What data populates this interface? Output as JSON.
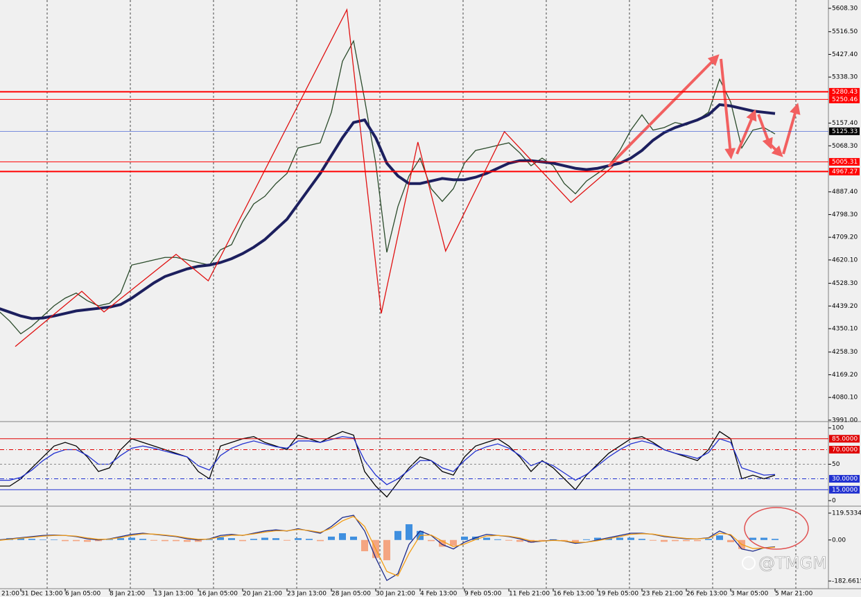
{
  "chart_data": [
    {
      "type": "line",
      "categories": [
        "21:00",
        null,
        null,
        null,
        "31 Dec 13:00",
        null,
        null,
        null,
        "6 Jan 05:00",
        null,
        null,
        null,
        "8 Jan 21:00",
        null,
        null,
        null,
        "13 Jan 13:00",
        null,
        null,
        null,
        "16 Jan 05:00",
        null,
        null,
        null,
        "20 Jan 21:00",
        null,
        null,
        null,
        "23 Jan 13:00",
        null,
        null,
        null,
        "28 Jan 05:00",
        null,
        null,
        null,
        "30 Jan 21:00",
        null,
        null,
        null,
        "4 Feb 13:00",
        null,
        null,
        null,
        "9 Feb 05:00",
        null,
        null,
        null,
        "11 Feb 21:00",
        null,
        null,
        null,
        "16 Feb 13:00",
        null,
        null,
        null,
        "19 Feb 05:00",
        null,
        null,
        null,
        "23 Feb 21:00",
        null,
        null,
        null,
        "26 Feb 13:00",
        null,
        null,
        null,
        "3 Mar 05:00",
        null,
        null,
        null,
        "5 Mar 21:00"
      ],
      "series": [
        {
          "color": "#2a4a2a",
          "values": [
            4450,
            4440,
            4420,
            4380,
            4330,
            4360,
            4400,
            4440,
            4470,
            4490,
            4460,
            4440,
            4450,
            4490,
            4600,
            4610,
            4620,
            4630,
            4630,
            4620,
            4610,
            4600,
            4660,
            4680,
            4770,
            4840,
            4870,
            4920,
            4960,
            5060,
            5070,
            5080,
            5200,
            5400,
            5480,
            5250,
            5000,
            4650,
            4830,
            4950,
            5020,
            4900,
            4850,
            4900,
            5000,
            5050,
            5060,
            5070,
            5080,
            5040,
            4990,
            5020,
            4990,
            4920,
            4880,
            4930,
            4960,
            4990,
            5050,
            5130,
            5190,
            5130,
            5140,
            5160,
            5150,
            5170,
            5200,
            5330,
            5240,
            5060,
            5130,
            5140,
            5115
          ]
        },
        {
          "color": "#1c1f5e",
          "values": [
            4450,
            4445,
            4430,
            4415,
            4400,
            4390,
            4392,
            4400,
            4410,
            4420,
            4425,
            4430,
            4435,
            4445,
            4470,
            4500,
            4530,
            4555,
            4570,
            4585,
            4595,
            4600,
            4610,
            4625,
            4645,
            4670,
            4700,
            4740,
            4780,
            4840,
            4900,
            4960,
            5030,
            5100,
            5160,
            5170,
            5100,
            5000,
            4950,
            4920,
            4920,
            4930,
            4940,
            4935,
            4935,
            4945,
            4960,
            4980,
            5000,
            5010,
            5010,
            5005,
            5000,
            4990,
            4980,
            4975,
            4980,
            4990,
            5000,
            5020,
            5050,
            5090,
            5120,
            5140,
            5155,
            5170,
            5190,
            5230,
            5225,
            5215,
            5205,
            5200,
            5195
          ]
        },
        {
          "color": "#e01010",
          "x": [
            3.5,
            9.5,
            11.5,
            18,
            20.9,
            33.4,
            36.5,
            39.8,
            42.3,
            47.6,
            53.6,
            57.4
          ],
          "values": [
            4280,
            4497,
            4416,
            4642,
            4538,
            5603,
            4410,
            5083,
            4655,
            5124,
            4846,
            4988
          ]
        }
      ],
      "ylim": [
        3988,
        5641
      ],
      "yticks": [
        {
          "value": 5608.3,
          "label": "5608.30"
        },
        {
          "value": 5516.5,
          "label": "5516.50"
        },
        {
          "value": 5427.4,
          "label": "5427.40"
        },
        {
          "value": 5338.3,
          "label": "5338.30"
        },
        {
          "value": 5157.4,
          "label": "5157.40"
        },
        {
          "value": 5068.3,
          "label": "5068.30"
        },
        {
          "value": 4887.4,
          "label": "4887.40"
        },
        {
          "value": 4798.3,
          "label": "4798.30"
        },
        {
          "value": 4709.2,
          "label": "4709.20"
        },
        {
          "value": 4620.1,
          "label": "4620.10"
        },
        {
          "value": 4528.3,
          "label": "4528.30"
        },
        {
          "value": 4439.2,
          "label": "4439.20"
        },
        {
          "value": 4350.1,
          "label": "4350.10"
        },
        {
          "value": 4258.3,
          "label": "4258.30"
        },
        {
          "value": 4169.2,
          "label": "4169.20"
        },
        {
          "value": 4080.1,
          "label": "4080.10"
        },
        {
          "value": 3991,
          "label": "3991.00"
        }
      ],
      "levels": [
        {
          "value": 5280.43,
          "label": "5280.43",
          "color": "#ff0000",
          "box": "#ff0000",
          "width": 2
        },
        {
          "value": 5250.46,
          "label": "5250.46",
          "color": "#ff0000",
          "box": "#ff0000",
          "width": 1
        },
        {
          "value": 5125.33,
          "label": "5125.33",
          "color": "#3050d0",
          "box": "#000000",
          "width": 0.6
        },
        {
          "value": 5005.31,
          "label": "5005.31",
          "color": "#ff0000",
          "box": "#ff0000",
          "width": 1
        },
        {
          "value": 4967.27,
          "label": "4967.27",
          "color": "#ff0000",
          "box": "#ff0000",
          "width": 2
        }
      ]
    },
    {
      "type": "line",
      "series": [
        {
          "color": "#000000",
          "values": [
            30,
            25,
            20,
            20,
            30,
            45,
            60,
            75,
            80,
            75,
            60,
            40,
            45,
            70,
            85,
            80,
            75,
            70,
            65,
            60,
            40,
            30,
            75,
            80,
            85,
            88,
            80,
            75,
            70,
            90,
            85,
            80,
            88,
            95,
            90,
            40,
            20,
            5,
            25,
            45,
            60,
            55,
            40,
            35,
            60,
            75,
            80,
            85,
            75,
            60,
            40,
            55,
            45,
            30,
            15,
            35,
            50,
            65,
            75,
            85,
            88,
            80,
            70,
            65,
            60,
            55,
            70,
            95,
            85,
            30,
            35,
            30,
            35
          ]
        },
        {
          "color": "#2030d0",
          "values": [
            35,
            30,
            28,
            28,
            32,
            42,
            55,
            65,
            70,
            70,
            62,
            50,
            50,
            62,
            72,
            75,
            72,
            68,
            64,
            60,
            48,
            42,
            62,
            72,
            78,
            82,
            78,
            74,
            72,
            82,
            82,
            80,
            84,
            88,
            86,
            55,
            35,
            22,
            30,
            42,
            55,
            55,
            45,
            40,
            55,
            68,
            74,
            78,
            72,
            62,
            48,
            54,
            48,
            38,
            28,
            36,
            48,
            60,
            70,
            78,
            82,
            78,
            70,
            65,
            62,
            58,
            66,
            85,
            80,
            45,
            40,
            35,
            36
          ]
        }
      ],
      "ylim": [
        -5.7,
        106.7
      ],
      "yticks": [
        100,
        50,
        0
      ],
      "levels": [
        {
          "value": 85,
          "label": "85.0000",
          "color": "#e00000",
          "box": "#e00000",
          "style": "solid"
        },
        {
          "value": 70,
          "label": "70.0000",
          "color": "#e00000",
          "box": "#e00000",
          "style": "dashdot"
        },
        {
          "value": 30,
          "label": "30.0000",
          "color": "#2030d0",
          "box": "#2030d0",
          "style": "dashdot"
        },
        {
          "value": 15,
          "label": "15.0000",
          "color": "#2030d0",
          "box": "#2030d0",
          "style": "solid"
        }
      ]
    },
    {
      "type": "combo",
      "histogram": {
        "up_color": "#3f8fdf",
        "down_color": "#f4a582",
        "values": [
          5,
          5,
          3,
          8,
          10,
          5,
          2,
          2,
          -5,
          -5,
          -8,
          -5,
          3,
          8,
          10,
          5,
          -3,
          -5,
          -5,
          -8,
          -8,
          3,
          12,
          8,
          -5,
          5,
          10,
          8,
          -3,
          8,
          5,
          -5,
          15,
          30,
          15,
          -50,
          -80,
          -90,
          40,
          70,
          40,
          -5,
          -30,
          -25,
          15,
          15,
          10,
          3,
          -3,
          -8,
          -12,
          -3,
          3,
          -3,
          -10,
          3,
          10,
          8,
          10,
          10,
          5,
          -3,
          -8,
          -5,
          -5,
          -5,
          5,
          20,
          -10,
          -40,
          10,
          10,
          5
        ]
      },
      "series": [
        {
          "color": "#1c2a8a",
          "values": [
            -10,
            -5,
            0,
            5,
            10,
            15,
            20,
            22,
            20,
            15,
            5,
            0,
            5,
            15,
            25,
            30,
            25,
            20,
            15,
            5,
            0,
            5,
            20,
            25,
            20,
            30,
            40,
            45,
            40,
            50,
            40,
            30,
            60,
            100,
            110,
            40,
            -80,
            -180,
            -150,
            -20,
            40,
            20,
            -20,
            -40,
            -10,
            10,
            25,
            20,
            15,
            5,
            -10,
            -5,
            0,
            -5,
            -15,
            -10,
            0,
            10,
            20,
            30,
            30,
            25,
            15,
            10,
            5,
            5,
            10,
            40,
            20,
            -40,
            -50,
            -35,
            -30
          ]
        },
        {
          "color": "#f39c12",
          "values": [
            -8,
            -6,
            -2,
            3,
            8,
            12,
            17,
            20,
            20,
            17,
            9,
            3,
            4,
            11,
            20,
            27,
            26,
            22,
            17,
            9,
            3,
            4,
            14,
            21,
            21,
            27,
            35,
            41,
            41,
            47,
            42,
            34,
            52,
            85,
            105,
            60,
            -40,
            -140,
            -160,
            -60,
            20,
            22,
            -5,
            -30,
            -18,
            2,
            18,
            20,
            17,
            9,
            -4,
            -5,
            -2,
            -4,
            -11,
            -10,
            -3,
            6,
            15,
            25,
            28,
            26,
            18,
            12,
            7,
            5,
            8,
            30,
            24,
            -20,
            -38,
            -36,
            -32
          ]
        }
      ],
      "ylim": [
        -213.5,
        144.2
      ],
      "yticks": [
        119.5334,
        {
          "value": 0,
          "label": "0.00"
        },
        -182.6615
      ]
    }
  ],
  "watermark": "@TMGM"
}
